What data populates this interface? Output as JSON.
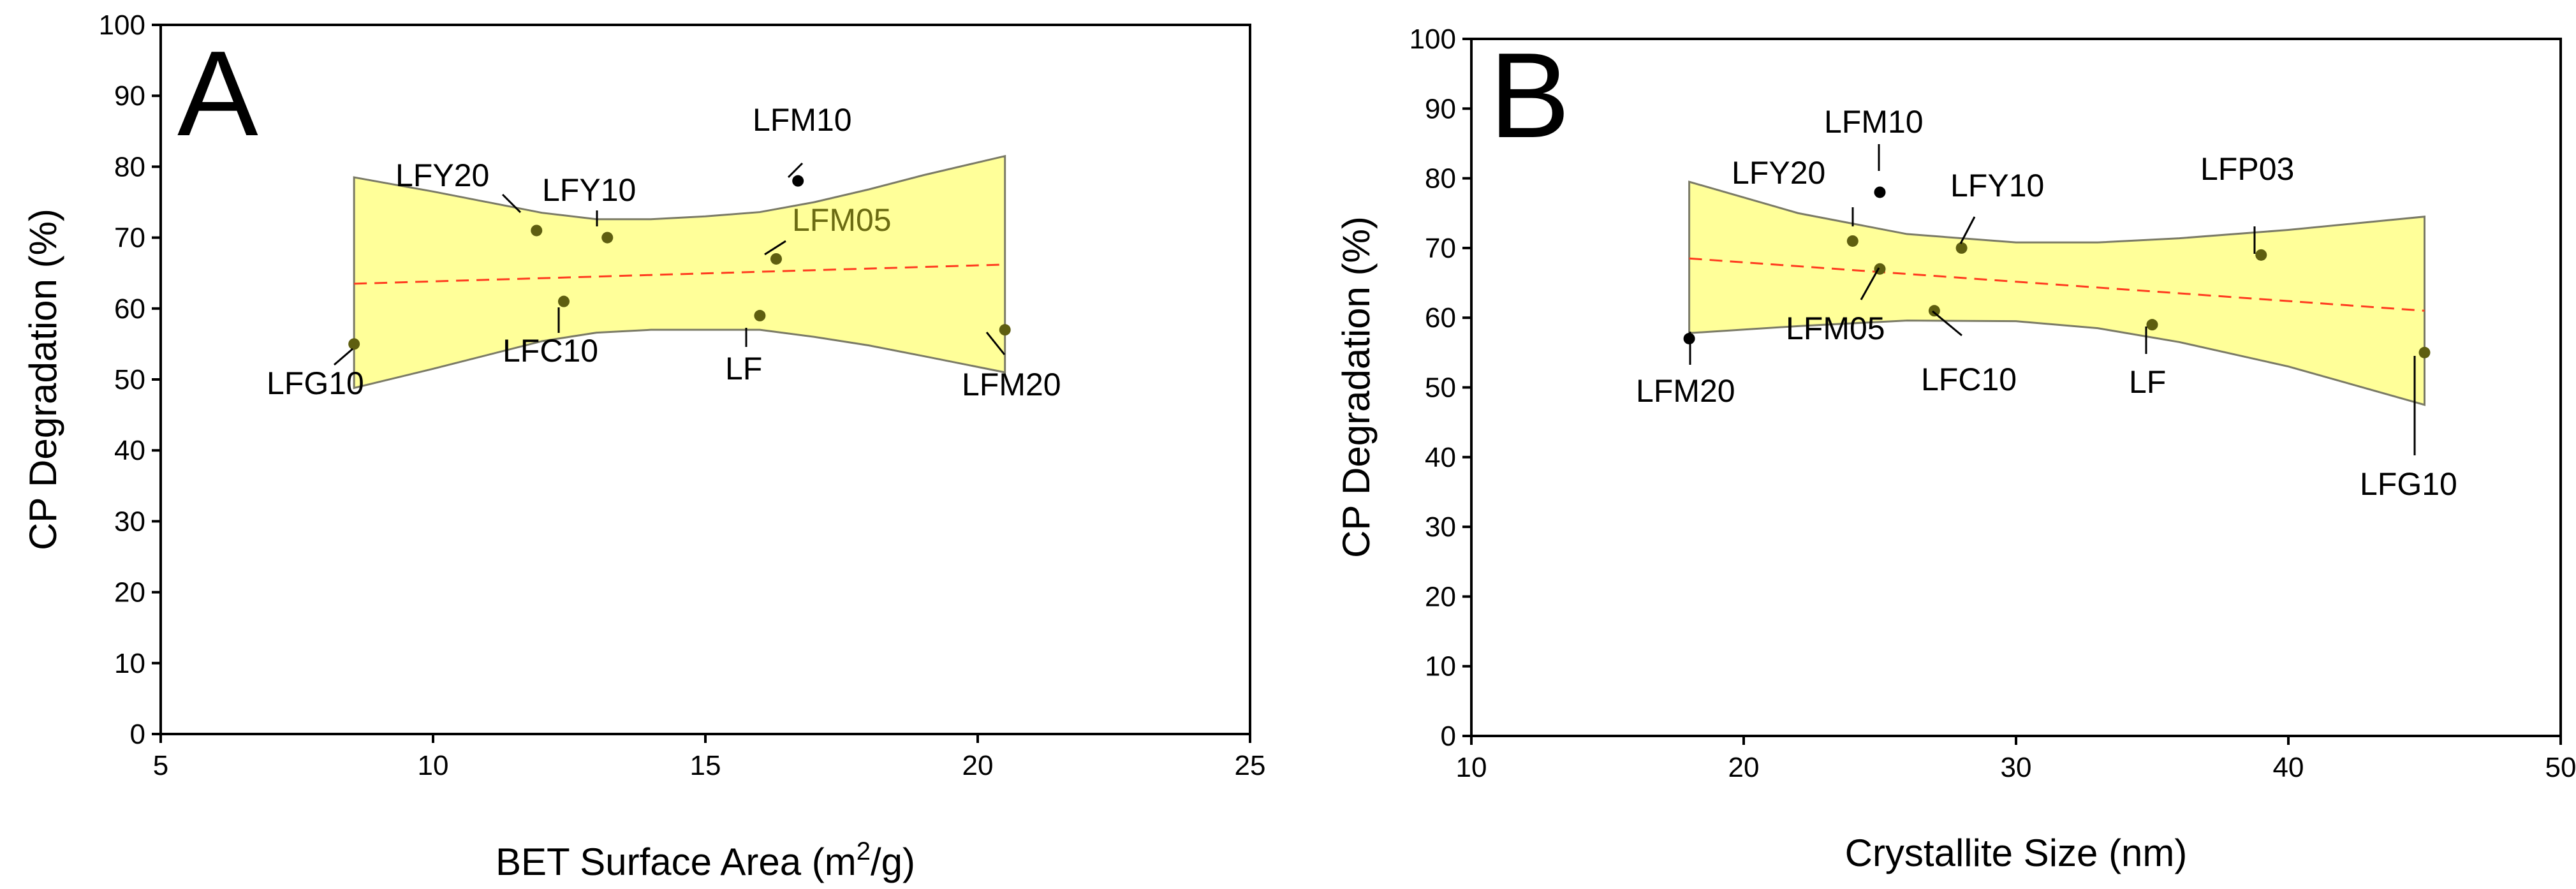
{
  "colors": {
    "band_fill": "#ffff99",
    "fit_line": "#ff3b1f",
    "point_outside": "#000000",
    "point_inside": "#5e5e10",
    "frame": "#000000"
  },
  "chart_data": [
    {
      "type": "scatter",
      "panel_letter": "A",
      "xlabel": "BET Surface Area (m²/g)",
      "ylabel": "CP Degradation (%)",
      "xlim": [
        5,
        25
      ],
      "ylim": [
        0,
        100
      ],
      "x_ticks": [
        5,
        10,
        15,
        20,
        25
      ],
      "y_ticks": [
        0,
        10,
        20,
        30,
        40,
        50,
        60,
        70,
        80,
        90,
        100
      ],
      "points": [
        {
          "label": "LFG10",
          "x": 8.55,
          "y": 55
        },
        {
          "label": "LFY20",
          "x": 11.9,
          "y": 71
        },
        {
          "label": "LFC10",
          "x": 12.4,
          "y": 61
        },
        {
          "label": "LFY10",
          "x": 13.2,
          "y": 70
        },
        {
          "label": "LF",
          "x": 16.0,
          "y": 59
        },
        {
          "label": "LFM05",
          "x": 16.3,
          "y": 67
        },
        {
          "label": "LFM10",
          "x": 16.7,
          "y": 78
        },
        {
          "label": "LFM20",
          "x": 20.5,
          "y": 57
        }
      ],
      "fit": {
        "x": [
          8.55,
          20.5
        ],
        "y": [
          63.5,
          66.2
        ]
      },
      "confidence_band": {
        "x": [
          8.55,
          10,
          12,
          13,
          14,
          15,
          16,
          17,
          18,
          19,
          20.5
        ],
        "upper": [
          78.5,
          76.5,
          73.5,
          72.6,
          72.6,
          73.0,
          73.6,
          75.0,
          76.8,
          78.8,
          81.5
        ],
        "lower": [
          48.8,
          51.5,
          55.4,
          56.6,
          57.0,
          57.0,
          57.0,
          56.0,
          54.8,
          53.3,
          51.0
        ]
      }
    },
    {
      "type": "scatter",
      "panel_letter": "B",
      "xlabel": "Crystallite Size (nm)",
      "ylabel": "CP Degradation (%)",
      "xlim": [
        10,
        50
      ],
      "ylim": [
        0,
        100
      ],
      "x_ticks": [
        10,
        20,
        30,
        40,
        50
      ],
      "y_ticks": [
        0,
        10,
        20,
        30,
        40,
        50,
        60,
        70,
        80,
        90,
        100
      ],
      "points": [
        {
          "label": "LFM20",
          "x": 18,
          "y": 57
        },
        {
          "label": "LFY20",
          "x": 24,
          "y": 71
        },
        {
          "label": "LFM10",
          "x": 25,
          "y": 78
        },
        {
          "label": "LFM05",
          "x": 25,
          "y": 67
        },
        {
          "label": "LFC10",
          "x": 27,
          "y": 61
        },
        {
          "label": "LFY10",
          "x": 28,
          "y": 70
        },
        {
          "label": "LF",
          "x": 35,
          "y": 59
        },
        {
          "label": "LFP03",
          "x": 39,
          "y": 69
        },
        {
          "label": "LFG10",
          "x": 45,
          "y": 55
        }
      ],
      "fit": {
        "x": [
          18,
          45
        ],
        "y": [
          68.5,
          61.0
        ]
      },
      "confidence_band": {
        "x": [
          18,
          22,
          26,
          30,
          33,
          36,
          40,
          45
        ],
        "upper": [
          79.5,
          75.0,
          72.0,
          70.8,
          70.8,
          71.4,
          72.6,
          74.5
        ],
        "lower": [
          57.8,
          58.8,
          59.6,
          59.5,
          58.5,
          56.5,
          53.0,
          47.5
        ]
      }
    }
  ]
}
